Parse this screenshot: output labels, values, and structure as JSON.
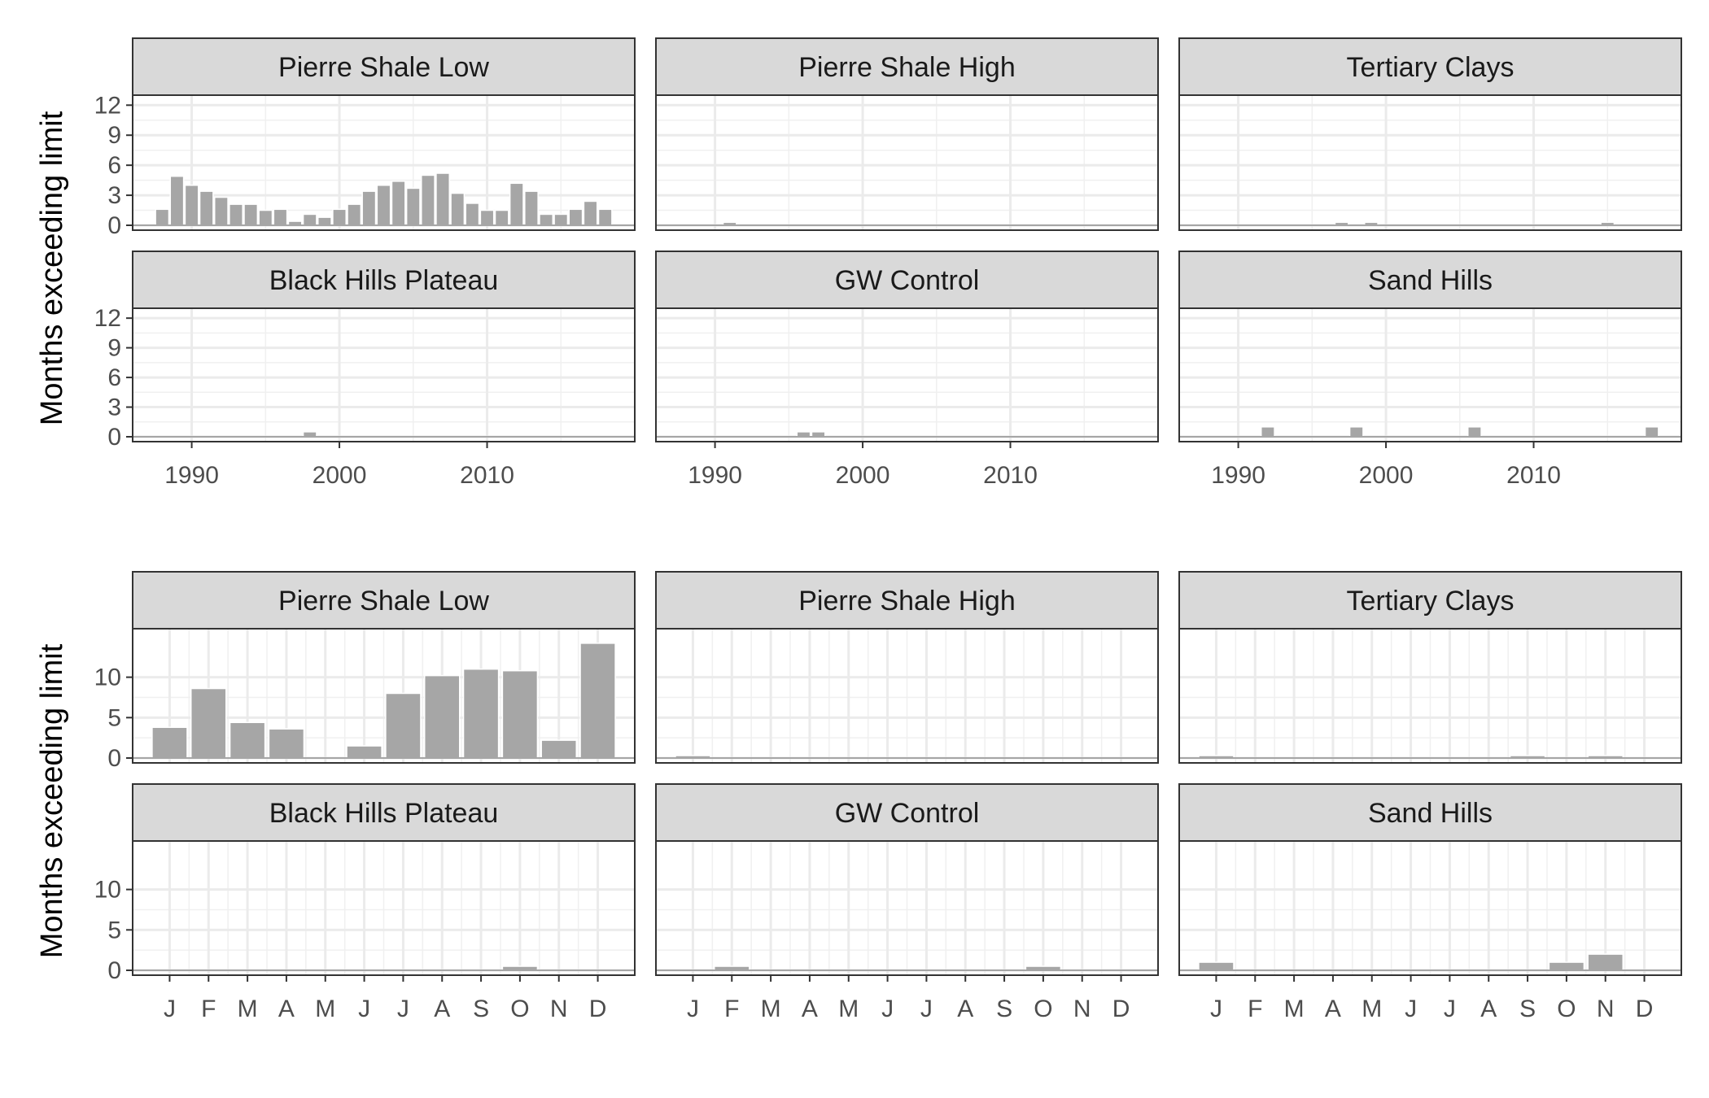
{
  "chart_data": [
    {
      "type": "bar",
      "ylabel": "Months exceeding limit",
      "xlabel": "",
      "xlim": [
        1986,
        2020
      ],
      "ylim": [
        0,
        13
      ],
      "y_ticks": [
        0,
        3,
        6,
        9,
        12
      ],
      "x_ticks": [
        1990,
        2000,
        2010
      ],
      "grid": true,
      "panels": [
        {
          "title": "Pierre Shale Low",
          "x": [
            1988,
            1989,
            1990,
            1991,
            1992,
            1993,
            1994,
            1995,
            1996,
            1997,
            1998,
            1999,
            2000,
            2001,
            2002,
            2003,
            2004,
            2005,
            2006,
            2007,
            2008,
            2009,
            2010,
            2011,
            2012,
            2013,
            2014,
            2015,
            2016,
            2017,
            2018
          ],
          "values": [
            1.6,
            4.9,
            4.0,
            3.4,
            2.8,
            2.1,
            2.1,
            1.5,
            1.6,
            0.4,
            1.1,
            0.8,
            1.6,
            2.1,
            3.4,
            4.0,
            4.4,
            3.7,
            5.0,
            5.2,
            3.2,
            2.2,
            1.5,
            1.5,
            4.2,
            3.4,
            1.1,
            1.1,
            1.6,
            2.4,
            1.6
          ]
        },
        {
          "title": "Pierre Shale High",
          "x": [
            1991
          ],
          "values": [
            0.3
          ]
        },
        {
          "title": "Tertiary Clays",
          "x": [
            1997,
            1999,
            2015
          ],
          "values": [
            0.3,
            0.3,
            0.3
          ]
        },
        {
          "title": "Black Hills Plateau",
          "x": [
            1998
          ],
          "values": [
            0.5
          ]
        },
        {
          "title": "GW Control",
          "x": [
            1996,
            1997
          ],
          "values": [
            0.5,
            0.5
          ]
        },
        {
          "title": "Sand Hills",
          "x": [
            1992,
            1998,
            2006,
            2018
          ],
          "values": [
            1.0,
            1.0,
            1.0,
            1.0
          ]
        }
      ]
    },
    {
      "type": "bar",
      "ylabel": "Months exceeding limit",
      "xlabel": "",
      "categories": [
        "J",
        "F",
        "M",
        "A",
        "M",
        "J",
        "J",
        "A",
        "S",
        "O",
        "N",
        "D"
      ],
      "ylim": [
        0,
        16
      ],
      "y_ticks": [
        0,
        5,
        10
      ],
      "grid": true,
      "panels": [
        {
          "title": "Pierre Shale Low",
          "values": [
            3.8,
            8.6,
            4.4,
            3.6,
            0,
            1.5,
            8.0,
            10.2,
            11.0,
            10.8,
            2.2,
            14.2
          ]
        },
        {
          "title": "Pierre Shale High",
          "values": [
            0.3,
            0,
            0,
            0,
            0,
            0,
            0,
            0,
            0,
            0,
            0,
            0
          ]
        },
        {
          "title": "Tertiary Clays",
          "values": [
            0.3,
            0,
            0,
            0,
            0,
            0,
            0,
            0,
            0.3,
            0,
            0.3,
            0
          ]
        },
        {
          "title": "Black Hills Plateau",
          "values": [
            0,
            0,
            0,
            0,
            0,
            0,
            0,
            0,
            0,
            0.5,
            0,
            0
          ]
        },
        {
          "title": "GW Control",
          "values": [
            0,
            0.5,
            0,
            0,
            0,
            0,
            0,
            0,
            0,
            0.5,
            0,
            0
          ]
        },
        {
          "title": "Sand Hills",
          "values": [
            1.0,
            0,
            0,
            0,
            0,
            0,
            0,
            0,
            0,
            1.0,
            2.0,
            0
          ]
        }
      ]
    }
  ]
}
